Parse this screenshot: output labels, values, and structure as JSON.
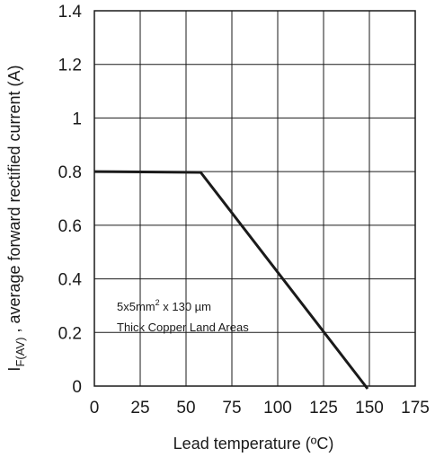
{
  "chart_data": {
    "type": "line",
    "title": "",
    "xlabel": "Lead temperature (ºC)",
    "ylabel_main": "I",
    "ylabel_sub": "F(AV)",
    "ylabel_rest": " , average forward rectified current (A)",
    "xlim": [
      0,
      175
    ],
    "ylim": [
      0,
      1.4
    ],
    "x_ticks": [
      0,
      25,
      50,
      75,
      100,
      125,
      150,
      175
    ],
    "x_tick_labels": [
      "0",
      "25",
      "50",
      "75",
      "100",
      "125",
      "150",
      "175"
    ],
    "y_ticks": [
      0,
      0.2,
      0.4,
      0.6,
      0.8,
      1,
      1.2,
      1.4
    ],
    "y_tick_labels": [
      "0",
      "0.2",
      "0.4",
      "0.6",
      "0.8",
      "1",
      "1.2",
      "1.4"
    ],
    "grid": true,
    "series": [
      {
        "x": [
          0,
          58,
          149
        ],
        "y": [
          0.8,
          0.797,
          -0.01
        ],
        "color": "#1a1a1a"
      }
    ],
    "annotation": {
      "line1_main": "5x5mm",
      "line1_sup": "2",
      "line1_rest": " x 130 µm",
      "line2": "Thick Copper Land Areas"
    }
  }
}
